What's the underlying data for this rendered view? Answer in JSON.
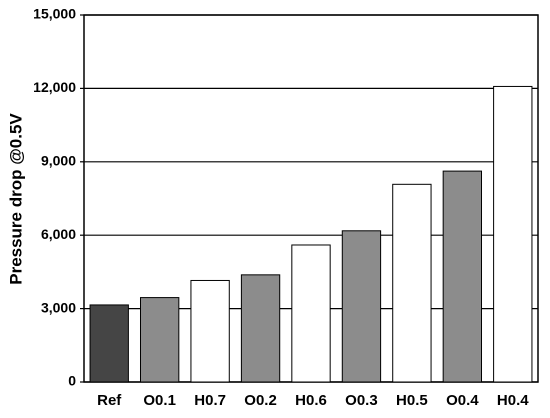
{
  "chart_data": {
    "type": "bar",
    "y_label": "Pressure drop @0.5V",
    "categories": [
      "Ref",
      "O0.1",
      "H0.7",
      "O0.2",
      "H0.6",
      "O0.3",
      "H0.5",
      "O0.4",
      "H0.4"
    ],
    "values": [
      3150,
      3450,
      4150,
      4380,
      5600,
      6180,
      8080,
      8620,
      12080
    ],
    "colors": [
      "#454545",
      "#8c8c8c",
      "#ffffff",
      "#8c8c8c",
      "#ffffff",
      "#8c8c8c",
      "#ffffff",
      "#8c8c8c",
      "#ffffff"
    ],
    "ylim": [
      0,
      15000
    ],
    "yticks": [
      0,
      {
        "value": 3000,
        "label": "3,000"
      },
      {
        "value": 6000,
        "label": "6,000"
      },
      {
        "value": 9000,
        "label": "9,000"
      },
      {
        "value": 12000,
        "label": "12,000"
      },
      {
        "value": 15000,
        "label": "15,000"
      }
    ],
    "grid": true
  }
}
